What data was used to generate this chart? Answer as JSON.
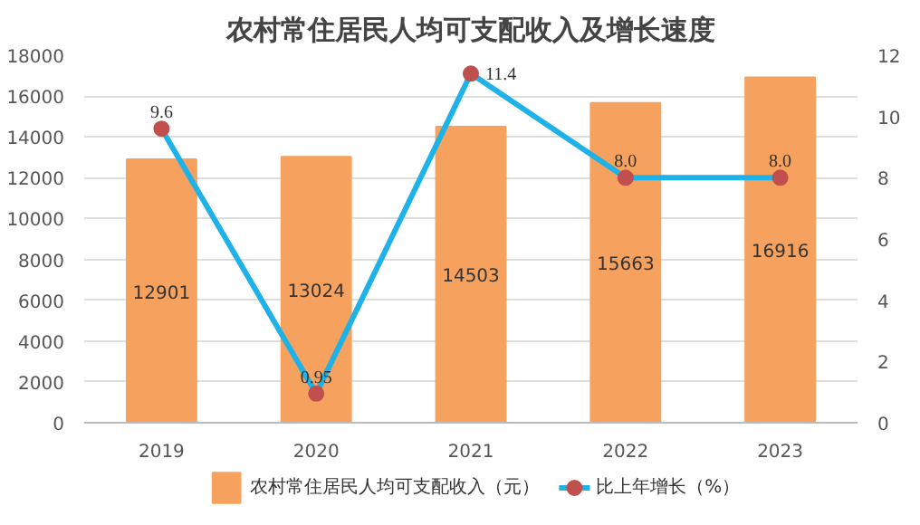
{
  "chart_data": {
    "type": "bar",
    "title": "农村常住居民人均可支配收入及增长速度",
    "categories": [
      "2019",
      "2020",
      "2021",
      "2022",
      "2023"
    ],
    "series": [
      {
        "name": "农村常住居民人均可支配收入（元）",
        "color": "#f6a25e",
        "values": [
          12901,
          13024,
          14503,
          15663,
          16916
        ],
        "value_labels": [
          "12901",
          "13024",
          "14503",
          "15663",
          "16916"
        ]
      },
      {
        "name": "比上年增长（%）",
        "type": "line",
        "axis": "y2",
        "color": "#1fb2e8",
        "values": [
          9.6,
          0.95,
          11.4,
          8.0,
          8.0
        ],
        "value_labels": [
          "9.6",
          "0.95",
          "11.4",
          "8.0",
          "8.0"
        ]
      }
    ],
    "ylim": [
      0,
      18000
    ],
    "yticks": [
      0,
      2000,
      4000,
      6000,
      8000,
      10000,
      12000,
      14000,
      16000,
      18000
    ],
    "y2lim": [
      0,
      12
    ],
    "y2ticks": [
      0,
      2,
      4,
      6,
      8,
      10,
      12
    ],
    "grid": "y",
    "legend": "bottom",
    "marker": "circle",
    "line_style": "solid"
  }
}
